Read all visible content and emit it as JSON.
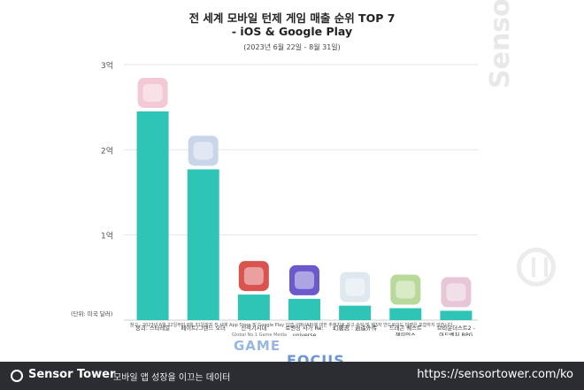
{
  "chart_data": {
    "type": "bar",
    "title": "전 세계 모바일 턴제 게임 매출 순위 TOP 7",
    "subtitle": "- iOS & Google Play",
    "period": "(2023년 6월 22일 - 8월 31일)",
    "unit_label": "(단위: 미국 달러)",
    "y_ticks": [
      "1억",
      "2억",
      "3억"
    ],
    "ylim": [
      0,
      300000000
    ],
    "grid": true,
    "categories": [
      "붕괴: 스타레일",
      "페이트/그랜드 오더",
      "신석기시대",
      "로맨싱 사가 Re: universe",
      "幻唐志 : 逍遥外传",
      "드래곤 퀘스트 챔피언스",
      "브라운더스트2 - 아드벤처 RPG"
    ],
    "values": [
      245000000,
      177000000,
      30000000,
      25000000,
      17000000,
      14000000,
      11000000
    ],
    "bar_color": "#2ec4b6"
  },
  "footnote": "참고 : 2023년 6월 22일부터 8월 31일까지 전 세계 App Store 및 Google Play 인앱 구매(IAP)에 대한 추정치로 광고 수익 및 제3자 안드로이드 마켓은 포함하지 않습니다.",
  "watermark": {
    "game_tag": "Global No.1 Game Media",
    "game": "GAME",
    "focus": "FOCUS",
    "side": "SensorTower"
  },
  "footer": {
    "brand": "Sensor Tower",
    "tagline": "모바일 앱 성장을 이끄는 데이터",
    "url": "https://sensortower.com/ko",
    "bg": "#2b2d33"
  }
}
